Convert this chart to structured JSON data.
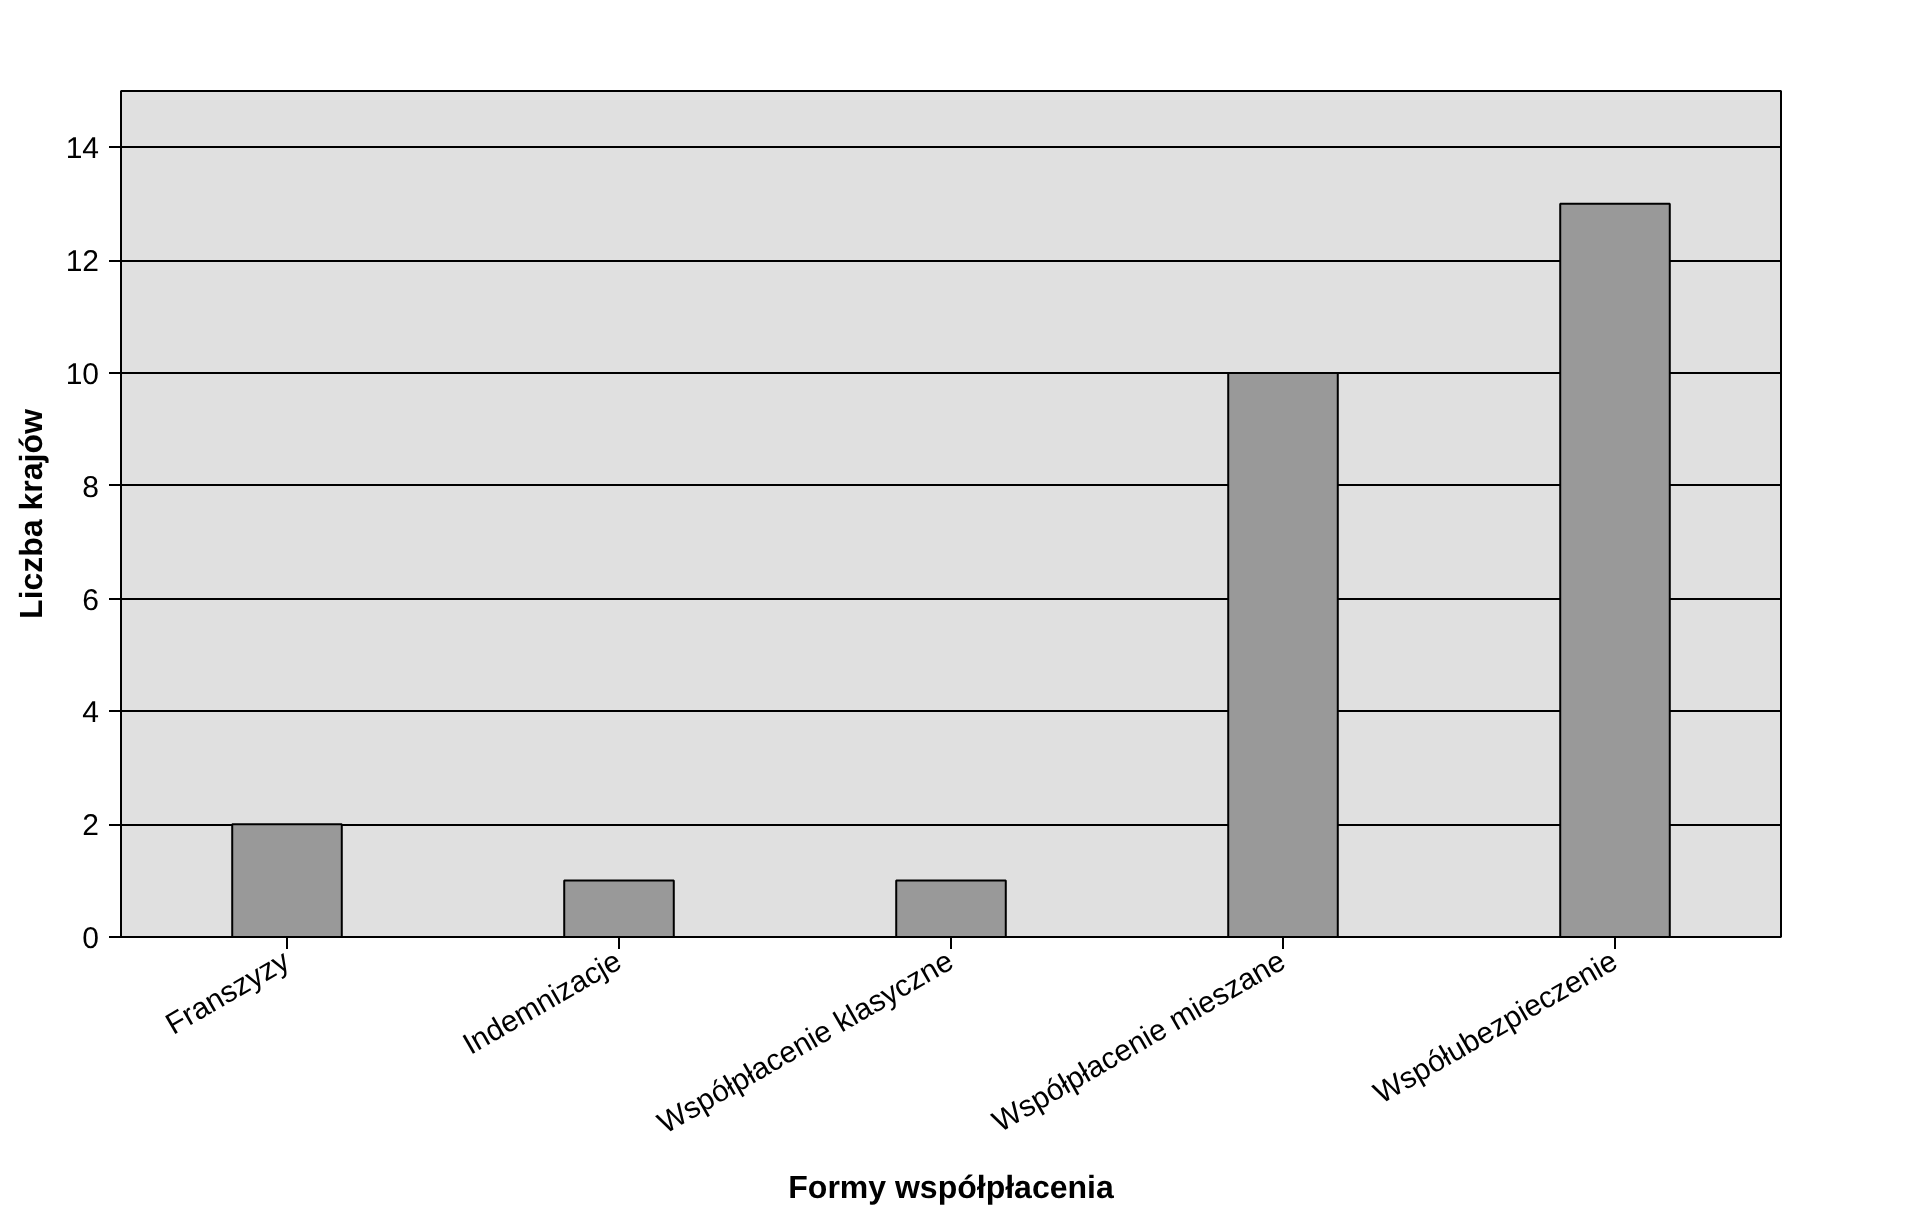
{
  "chart_data": {
    "type": "bar",
    "xlabel": "Formy współpłacenia",
    "ylabel": "Liczba krajów",
    "categories": [
      "Franszyzy",
      "Indemnizacje",
      "Współpłacenie klasyczne",
      "Współpłacenie mieszane",
      "Współubezpieczenie"
    ],
    "values": [
      2,
      1,
      1,
      10,
      13
    ],
    "color": "#999999",
    "ylim": [
      0,
      15
    ],
    "yticks": [
      0,
      2,
      4,
      6,
      8,
      10,
      12,
      14
    ],
    "grid": "y"
  }
}
